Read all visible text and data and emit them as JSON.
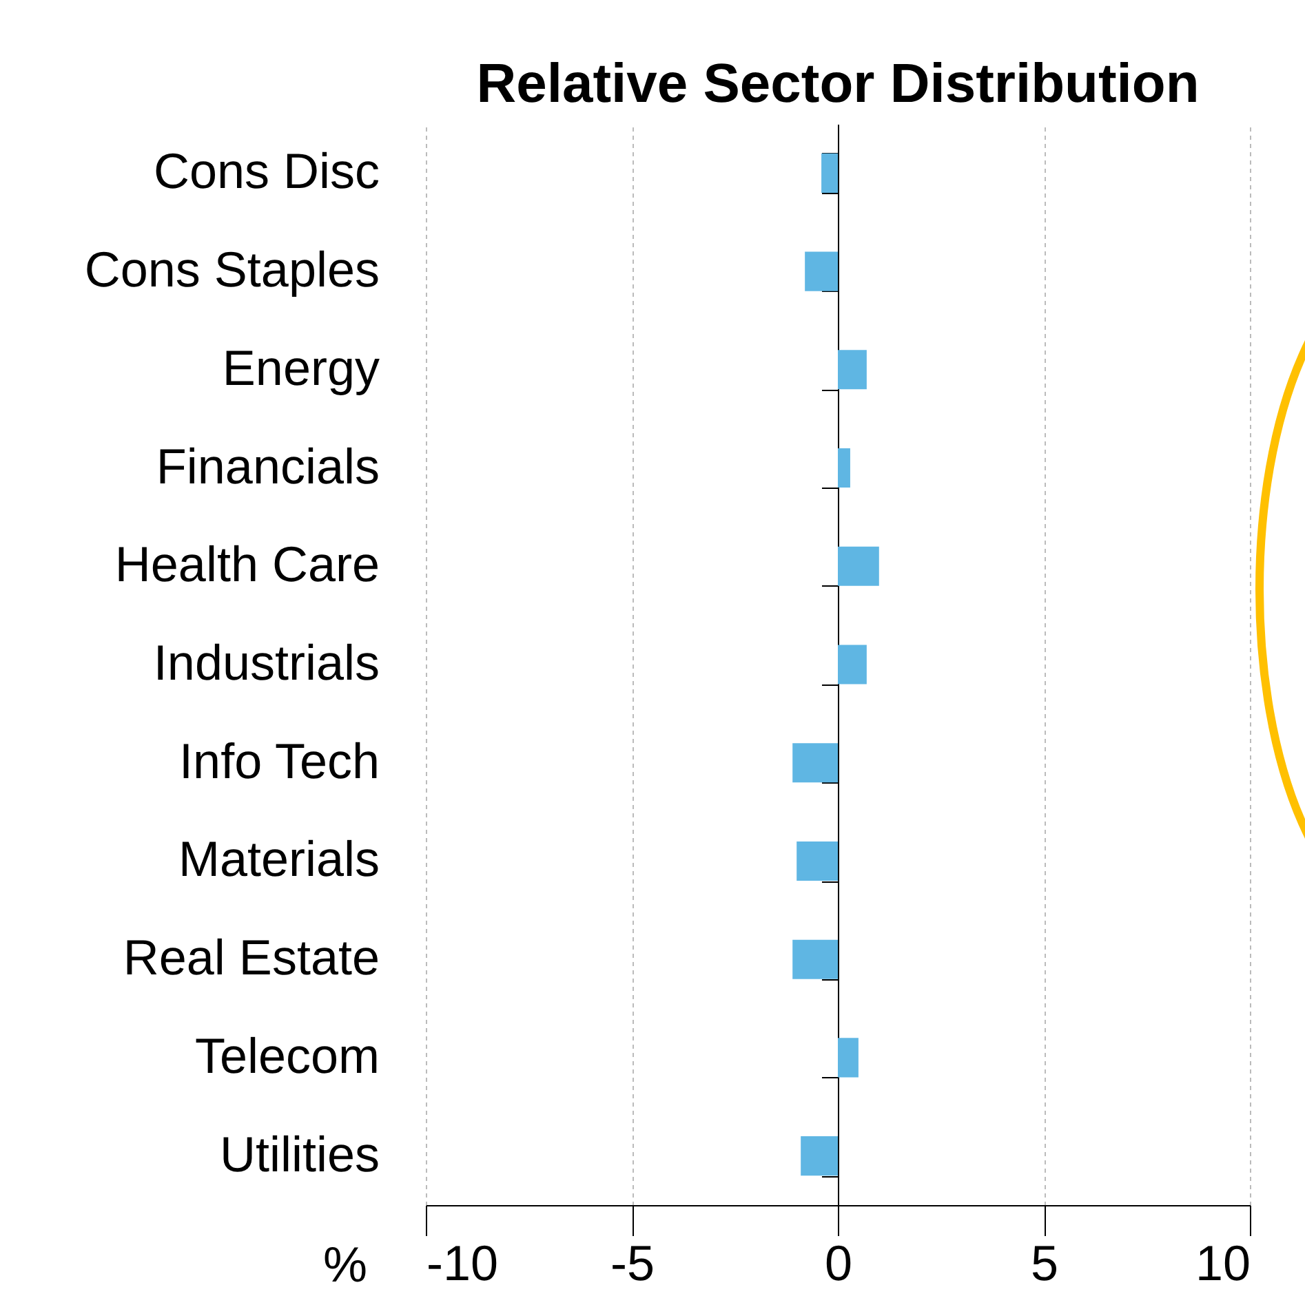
{
  "chart_data": {
    "type": "bar",
    "orientation": "horizontal",
    "title": "Relative Sector Distribution",
    "xlabel": "%",
    "categories": [
      "Cons Disc",
      "Cons Staples",
      "Energy",
      "Financials",
      "Health Care",
      "Industrials",
      "Info Tech",
      "Materials",
      "Real Estate",
      "Telecom",
      "Utilities"
    ],
    "series": [
      {
        "color": "#5fb6e3",
        "values": [
          -0.4,
          -0.8,
          0.7,
          0.3,
          1.0,
          0.7,
          -1.1,
          -1.0,
          -1.1,
          0.5,
          -0.9
        ]
      }
    ],
    "xlim": [
      -10,
      10
    ],
    "xticks": [
      -10,
      -5,
      0,
      5,
      10
    ],
    "grid": "x",
    "legend": false
  }
}
